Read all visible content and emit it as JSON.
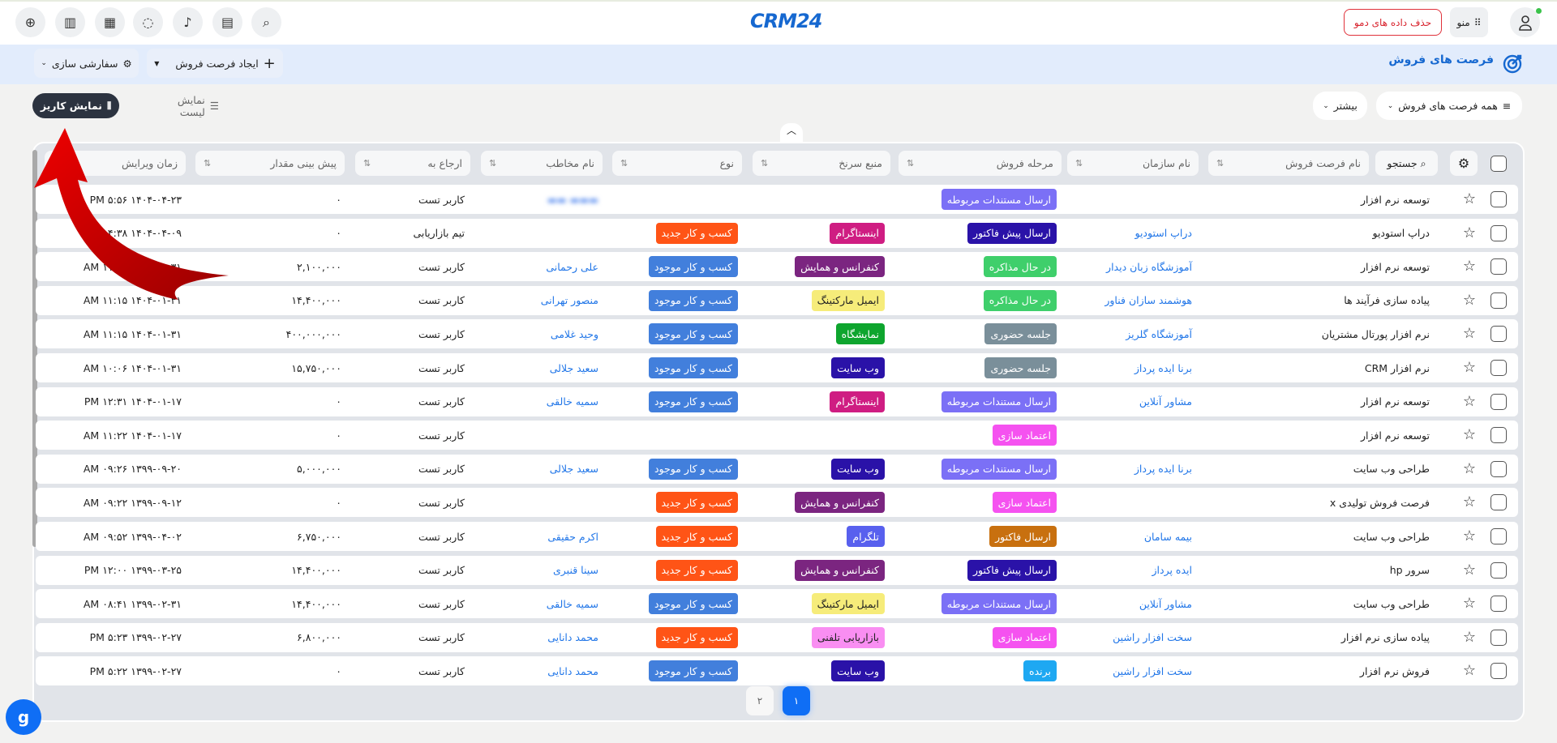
{
  "topbar": {
    "logo": "CRM24",
    "icons": [
      "plus-circle-icon",
      "chart-icon",
      "calendar-icon",
      "chat-icon",
      "bell-icon",
      "clipboard-icon",
      "search-icon"
    ],
    "demo_button": "حذف داده های دمو",
    "menu_label": "منو"
  },
  "header": {
    "title": "فرصت های فروش",
    "create_button": "ایجاد فرصت فروش",
    "customize_button": "سفارشی سازی"
  },
  "toolbar": {
    "kanban_view": "نمایش کاریز",
    "list_view": "نمایش لیست",
    "filter": "همه فرصت های فروش",
    "more": "بیشتر"
  },
  "table": {
    "search_label": "جستجو",
    "columns": [
      "نام فرصت فروش",
      "نام سازمان",
      "مرحله فروش",
      "منبع سرنخ",
      "نوع",
      "نام مخاطب",
      "ارجاع به",
      "پیش بینی مقدار",
      "زمان ویرایش"
    ],
    "rows": [
      [
        "توسعه نرم افزار",
        "",
        "ارسال مستندات مربوطه",
        "",
        "",
        "",
        "کاربر تست",
        "۰",
        "۱۴۰۴-۰۴-۲۳ ۵:۵۶ PM"
      ],
      [
        "دراپ استودیو",
        "دراپ استودیو",
        "ارسال پیش فاکتور",
        "اینستاگرام",
        "کسب و کار جدید",
        "",
        "تیم بازاریابی",
        "۰",
        "۱۴۰۴-۰۴-۰۹ ۴:۳۸ PM"
      ],
      [
        "توسعه نرم افزار",
        "آموزشگاه زبان دیدار",
        "در حال مذاکره",
        "کنفرانس و همایش",
        "کسب و کار موجود",
        "علی رحمانی",
        "کاربر تست",
        "۲,۱۰۰,۰۰۰",
        "۱۴۰۴-۰۱-۳۱ ۱۱:۱۵ AM"
      ],
      [
        "پیاده سازی فرآیند ها",
        "هوشمند سازان فناور",
        "در حال مذاکره",
        "ایمیل مارکتینگ",
        "کسب و کار موجود",
        "منصور تهرانی",
        "کاربر تست",
        "۱۴,۴۰۰,۰۰۰",
        "۱۴۰۴-۰۱-۳۱ ۱۱:۱۵ AM"
      ],
      [
        "نرم افزار پورتال مشتریان",
        "آموزشگاه گلریز",
        "جلسه حضوری",
        "نمایشگاه",
        "کسب و کار موجود",
        "وحید غلامی",
        "کاربر تست",
        "۴۰۰,۰۰۰,۰۰۰",
        "۱۴۰۴-۰۱-۳۱ ۱۱:۱۵ AM"
      ],
      [
        "نرم افزار CRM",
        "برنا ایده پرداز",
        "جلسه حضوری",
        "وب سایت",
        "کسب و کار موجود",
        "سعید جلالی",
        "کاربر تست",
        "۱۵,۷۵۰,۰۰۰",
        "۱۴۰۴-۰۱-۳۱ ۱۰:۰۶ AM"
      ],
      [
        "توسعه نرم افزار",
        "مشاور آنلاین",
        "ارسال مستندات مربوطه",
        "اینستاگرام",
        "کسب و کار موجود",
        "سمیه خالقی",
        "کاربر تست",
        "۰",
        "۱۴۰۴-۰۱-۱۷ ۱۲:۳۱ PM"
      ],
      [
        "توسعه نرم افزار",
        "",
        "اعتماد سازی",
        "",
        "",
        "",
        "کاربر تست",
        "۰",
        "۱۴۰۴-۰۱-۱۷ ۱۱:۲۲ AM"
      ],
      [
        "طراحی وب سایت",
        "برنا ایده پرداز",
        "ارسال مستندات مربوطه",
        "وب سایت",
        "کسب و کار موجود",
        "سعید جلالی",
        "کاربر تست",
        "۵,۰۰۰,۰۰۰",
        "۱۳۹۹-۰۹-۲۰ ۰۹:۲۶ AM"
      ],
      [
        "فرصت فروش تولیدی x",
        "",
        "اعتماد سازی",
        "کنفرانس و همایش",
        "کسب و کار جدید",
        "",
        "کاربر تست",
        "۰",
        "۱۳۹۹-۰۹-۱۲ ۰۹:۲۲ AM"
      ],
      [
        "طراحی وب سایت",
        "بیمه سامان",
        "ارسال فاکتور",
        "تلگرام",
        "کسب و کار جدید",
        "اکرم حقیقی",
        "کاربر تست",
        "۶,۷۵۰,۰۰۰",
        "۱۳۹۹-۰۴-۰۲ ۰۹:۵۲ AM"
      ],
      [
        "سرور hp",
        "ایده پرداز",
        "ارسال پیش فاکتور",
        "کنفرانس و همایش",
        "کسب و کار جدید",
        "سینا قنبری",
        "کاربر تست",
        "۱۴,۴۰۰,۰۰۰",
        "۱۳۹۹-۰۳-۲۵ ۱۲:۰۰ PM"
      ],
      [
        "طراحی وب سایت",
        "مشاور آنلاین",
        "ارسال مستندات مربوطه",
        "ایمیل مارکتینگ",
        "کسب و کار موجود",
        "سمیه خالقی",
        "کاربر تست",
        "۱۴,۴۰۰,۰۰۰",
        "۱۳۹۹-۰۲-۳۱ ۰۸:۴۱ AM"
      ],
      [
        "پیاده سازی نرم افزار",
        "سخت افزار راشین",
        "اعتماد سازی",
        "بازاریابی تلفنی",
        "کسب و کار جدید",
        "محمد دانایی",
        "کاربر تست",
        "۶,۸۰۰,۰۰۰",
        "۱۳۹۹-۰۲-۲۷ ۵:۲۳ PM"
      ],
      [
        "فروش نرم افزار",
        "سخت افزار راشین",
        "برنده",
        "وب سایت",
        "کسب و کار موجود",
        "محمد دانایی",
        "کاربر تست",
        "۰",
        "۱۳۹۹-۰۲-۲۷ ۵:۲۲ PM"
      ]
    ]
  },
  "badge_colors": {
    "ارسال مستندات مربوطه": "#7b70f6",
    "ارسال پیش فاکتور": "#2a12a8",
    "در حال مذاکره": "#3fcf6b",
    "جلسه حضوری": "#7a8f9a",
    "اعتماد سازی": "#f552f0",
    "ارسال فاکتور": "#c8700f",
    "برنده": "#1ea8f2",
    "اینستاگرام": "#cf1d82",
    "کنفرانس و همایش": "#7b2580",
    "ایمیل مارکتینگ": "#f6ec7a",
    "نمایشگاه": "#0ea52e",
    "وب سایت": "#2a12a8",
    "تلگرام": "#5860ee",
    "بازاریابی تلفنی": "#f98ef2",
    "کسب و کار جدید": "#ff5416",
    "کسب و کار موجود": "#427fdc"
  },
  "pagination": {
    "pages": [
      "۱",
      "۲"
    ],
    "current": "۱"
  },
  "accent": "#1668d0"
}
